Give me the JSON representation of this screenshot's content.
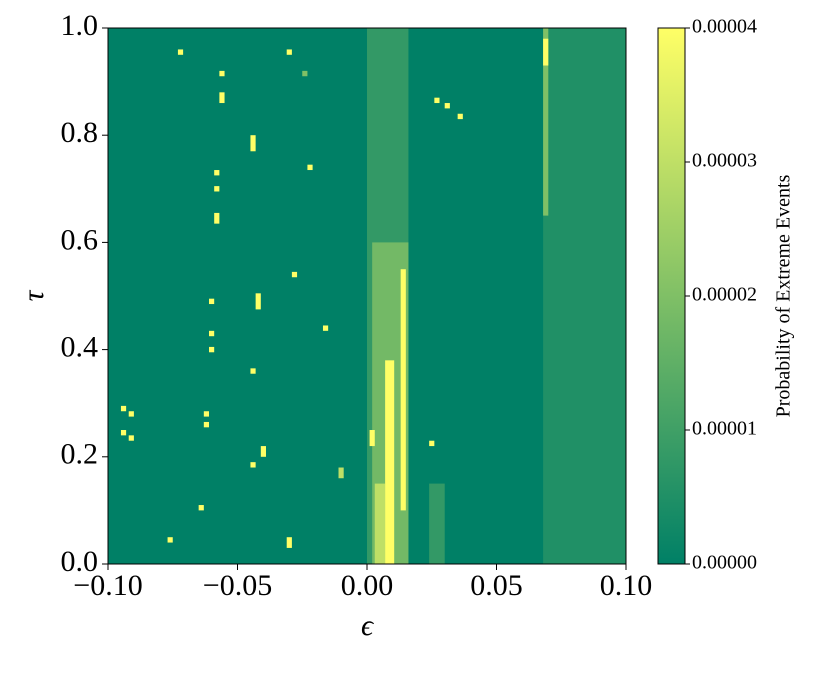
{
  "chart_data": {
    "type": "heatmap",
    "xlabel": "ϵ",
    "ylabel": "τ",
    "colorbar_label": "Probability of Extreme Events",
    "colormap": [
      "#008066",
      "#ffff66"
    ],
    "xlim": [
      -0.1,
      0.1
    ],
    "ylim": [
      0,
      1
    ],
    "clim": [
      0,
      4e-05
    ],
    "xticks": [
      {
        "value": -0.1,
        "label": "−0.10"
      },
      {
        "value": -0.05,
        "label": "−0.05"
      },
      {
        "value": 0,
        "label": "0.00"
      },
      {
        "value": 0.05,
        "label": "0.05"
      },
      {
        "value": 0.1,
        "label": "0.10"
      }
    ],
    "yticks": [
      {
        "value": 0,
        "label": "0.0"
      },
      0.2,
      0.4,
      0.6,
      0.8,
      {
        "value": 1,
        "label": "1.0"
      }
    ],
    "cticks": [
      {
        "value": 0,
        "label": "0.00000"
      },
      {
        "value": 1e-05,
        "label": "0.00001"
      },
      {
        "value": 2e-05,
        "label": "0.00002"
      },
      {
        "value": 3e-05,
        "label": "0.00003"
      },
      {
        "value": 4e-05,
        "label": "0.00004"
      }
    ],
    "cells": [
      {
        "x": [
          -0.1,
          0.1
        ],
        "y": [
          0,
          1
        ],
        "value": 0
      },
      {
        "x": [
          0,
          0.016
        ],
        "y": [
          0,
          1
        ],
        "value": 8e-06
      },
      {
        "x": [
          0.068,
          0.1
        ],
        "y": [
          0,
          1
        ],
        "value": 5e-06
      },
      {
        "x": [
          0.068,
          0.07
        ],
        "y": [
          0.65,
          1
        ],
        "value": 2e-05
      },
      {
        "x": [
          0.068,
          0.07
        ],
        "y": [
          0.93,
          0.98
        ],
        "value": 4e-05
      },
      {
        "x": [
          0.002,
          0.016
        ],
        "y": [
          0,
          0.6
        ],
        "value": 1.8e-05
      },
      {
        "x": [
          0.024,
          0.03
        ],
        "y": [
          0,
          0.15
        ],
        "value": 8e-06
      },
      {
        "x": [
          0.003,
          0.007
        ],
        "y": [
          0,
          0.15
        ],
        "value": 3e-05
      },
      {
        "x": [
          0.007,
          0.0105
        ],
        "y": [
          0,
          0.38
        ],
        "value": 4e-05
      },
      {
        "x": [
          0.013,
          0.015
        ],
        "y": [
          0.1,
          0.55
        ],
        "value": 4e-05
      },
      {
        "x": [
          0.001,
          0.003
        ],
        "y": [
          0.22,
          0.25
        ],
        "value": 4e-05
      },
      {
        "x": [
          -0.073,
          -0.071
        ],
        "y": [
          0.95,
          0.96
        ],
        "value": 4e-05
      },
      {
        "x": [
          -0.031,
          -0.029
        ],
        "y": [
          0.95,
          0.96
        ],
        "value": 4e-05
      },
      {
        "x": [
          -0.057,
          -0.055
        ],
        "y": [
          0.91,
          0.92
        ],
        "value": 4e-05
      },
      {
        "x": [
          -0.025,
          -0.023
        ],
        "y": [
          0.91,
          0.92
        ],
        "value": 2e-05
      },
      {
        "x": [
          -0.057,
          -0.055
        ],
        "y": [
          0.86,
          0.88
        ],
        "value": 4e-05
      },
      {
        "x": [
          -0.045,
          -0.043
        ],
        "y": [
          0.77,
          0.8
        ],
        "value": 4e-05
      },
      {
        "x": [
          -0.059,
          -0.057
        ],
        "y": [
          0.725,
          0.735
        ],
        "value": 4e-05
      },
      {
        "x": [
          -0.059,
          -0.057
        ],
        "y": [
          0.695,
          0.705
        ],
        "value": 4e-05
      },
      {
        "x": [
          -0.059,
          -0.057
        ],
        "y": [
          0.635,
          0.655
        ],
        "value": 4e-05
      },
      {
        "x": [
          -0.023,
          -0.021
        ],
        "y": [
          0.735,
          0.745
        ],
        "value": 4e-05
      },
      {
        "x": [
          -0.043,
          -0.041
        ],
        "y": [
          0.475,
          0.505
        ],
        "value": 4e-05
      },
      {
        "x": [
          -0.061,
          -0.059
        ],
        "y": [
          0.485,
          0.495
        ],
        "value": 4e-05
      },
      {
        "x": [
          -0.029,
          -0.027
        ],
        "y": [
          0.535,
          0.545
        ],
        "value": 4e-05
      },
      {
        "x": [
          -0.061,
          -0.059
        ],
        "y": [
          0.425,
          0.435
        ],
        "value": 4e-05
      },
      {
        "x": [
          -0.061,
          -0.059
        ],
        "y": [
          0.395,
          0.405
        ],
        "value": 4e-05
      },
      {
        "x": [
          -0.017,
          -0.015
        ],
        "y": [
          0.435,
          0.445
        ],
        "value": 4e-05
      },
      {
        "x": [
          -0.045,
          -0.043
        ],
        "y": [
          0.355,
          0.365
        ],
        "value": 4e-05
      },
      {
        "x": [
          -0.095,
          -0.093
        ],
        "y": [
          0.285,
          0.295
        ],
        "value": 4e-05
      },
      {
        "x": [
          -0.092,
          -0.09
        ],
        "y": [
          0.275,
          0.285
        ],
        "value": 4e-05
      },
      {
        "x": [
          -0.095,
          -0.093
        ],
        "y": [
          0.24,
          0.25
        ],
        "value": 4e-05
      },
      {
        "x": [
          -0.092,
          -0.09
        ],
        "y": [
          0.23,
          0.24
        ],
        "value": 4e-05
      },
      {
        "x": [
          -0.063,
          -0.061
        ],
        "y": [
          0.275,
          0.285
        ],
        "value": 4e-05
      },
      {
        "x": [
          -0.063,
          -0.061
        ],
        "y": [
          0.255,
          0.265
        ],
        "value": 4e-05
      },
      {
        "x": [
          -0.041,
          -0.039
        ],
        "y": [
          0.2,
          0.22
        ],
        "value": 4e-05
      },
      {
        "x": [
          -0.045,
          -0.043
        ],
        "y": [
          0.18,
          0.19
        ],
        "value": 4e-05
      },
      {
        "x": [
          -0.011,
          -0.009
        ],
        "y": [
          0.16,
          0.18
        ],
        "value": 3e-05
      },
      {
        "x": [
          -0.065,
          -0.063
        ],
        "y": [
          0.1,
          0.11
        ],
        "value": 4e-05
      },
      {
        "x": [
          -0.077,
          -0.075
        ],
        "y": [
          0.04,
          0.05
        ],
        "value": 4e-05
      },
      {
        "x": [
          -0.031,
          -0.029
        ],
        "y": [
          0.03,
          0.05
        ],
        "value": 4e-05
      },
      {
        "x": [
          0.026,
          0.028
        ],
        "y": [
          0.86,
          0.87
        ],
        "value": 4e-05
      },
      {
        "x": [
          0.03,
          0.032
        ],
        "y": [
          0.85,
          0.86
        ],
        "value": 4e-05
      },
      {
        "x": [
          0.035,
          0.037
        ],
        "y": [
          0.83,
          0.84
        ],
        "value": 4e-05
      },
      {
        "x": [
          0.024,
          0.026
        ],
        "y": [
          0.22,
          0.23
        ],
        "value": 4e-05
      }
    ]
  }
}
